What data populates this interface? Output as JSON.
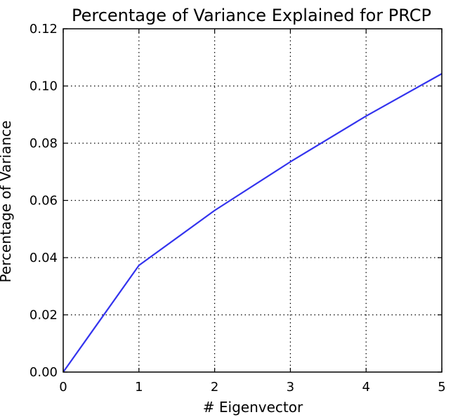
{
  "chart_data": {
    "type": "line",
    "title": "Percentage of Variance Explained for PRCP",
    "xlabel": "# Eigenvector",
    "ylabel": "Percentage of Variance",
    "xlim": [
      0,
      5
    ],
    "ylim": [
      0,
      0.12
    ],
    "x_ticks": [
      "0",
      "1",
      "2",
      "3",
      "4",
      "5"
    ],
    "y_ticks": [
      "0.00",
      "0.02",
      "0.04",
      "0.06",
      "0.08",
      "0.10",
      "0.12"
    ],
    "grid": true,
    "series": [
      {
        "color": "#3333ee",
        "x": [
          0,
          1,
          2,
          3,
          4,
          5
        ],
        "y": [
          0.0,
          0.0373,
          0.0565,
          0.0735,
          0.0895,
          0.1043
        ]
      }
    ]
  }
}
